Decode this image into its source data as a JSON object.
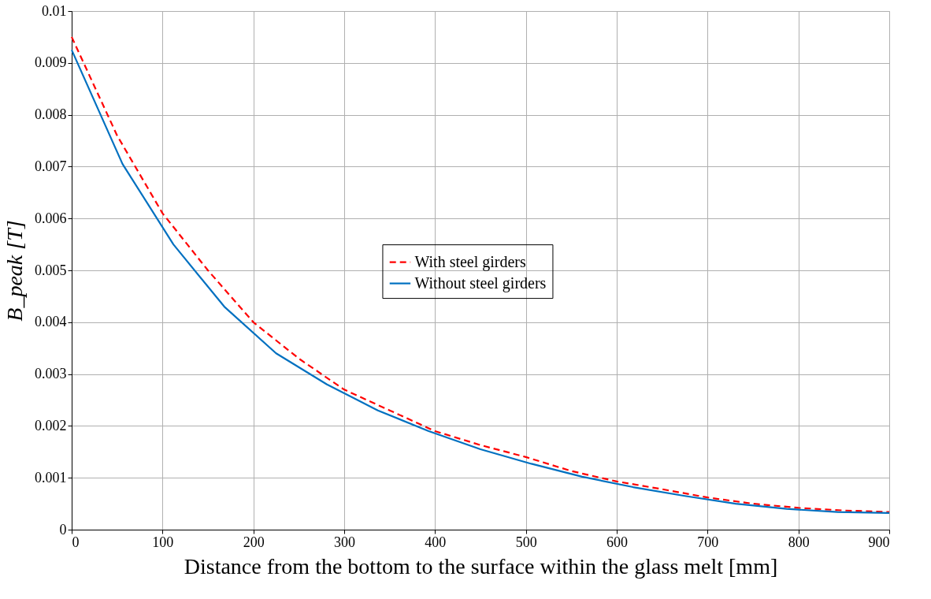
{
  "chart_data": {
    "type": "line",
    "xlabel": "Distance from the bottom to the surface within the glass melt [mm]",
    "ylabel": "B_peak [T]",
    "xlim": [
      0,
      900
    ],
    "xticks": [
      0,
      100,
      200,
      300,
      400,
      500,
      600,
      700,
      800,
      900
    ],
    "ylim": [
      0,
      0.01
    ],
    "yticks": [
      0,
      0.001,
      0.002,
      0.003,
      0.004,
      0.005,
      0.006,
      0.007,
      0.008,
      0.009,
      0.01
    ],
    "grid": true,
    "legend": "center",
    "marker": "none",
    "series": [
      {
        "name": "With steel girders",
        "color": "#ff0000",
        "line_style": "dashed",
        "x": [
          0,
          50,
          100,
          150,
          200,
          250,
          300,
          350,
          400,
          450,
          500,
          550,
          600,
          650,
          700,
          750,
          800,
          850,
          900
        ],
        "values": [
          0.0095,
          0.0076,
          0.0061,
          0.005,
          0.004,
          0.0033,
          0.0027,
          0.0023,
          0.0019,
          0.00163,
          0.0014,
          0.00113,
          0.00093,
          0.00078,
          0.00062,
          0.0005,
          0.00042,
          0.00037,
          0.00034
        ]
      },
      {
        "name": "Without steel girders",
        "color": "#0070c0",
        "line_style": "solid",
        "x": [
          0,
          56,
          112,
          168,
          225,
          281,
          337,
          393,
          450,
          506,
          562,
          618,
          675,
          731,
          787,
          843,
          900
        ],
        "values": [
          0.00925,
          0.00705,
          0.0055,
          0.0043,
          0.0034,
          0.0028,
          0.0023,
          0.0019,
          0.00155,
          0.00127,
          0.00102,
          0.00082,
          0.00065,
          0.0005,
          0.0004,
          0.00034,
          0.00032
        ]
      }
    ]
  }
}
